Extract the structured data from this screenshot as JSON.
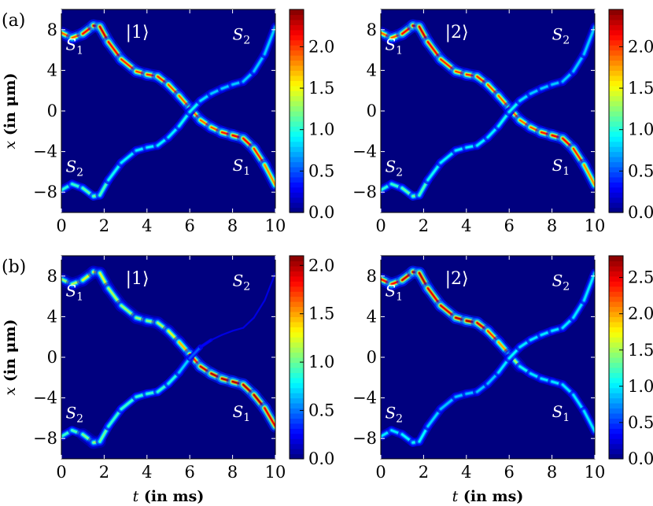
{
  "figure": {
    "xlabel": "t (in ms)",
    "ylabel": "x (in μm)",
    "background_color": "#00007f"
  },
  "colormap": "jet",
  "chart_data": [
    {
      "type": "heatmap",
      "row": "(a)",
      "state": "|1⟩",
      "xlim": [
        0,
        10
      ],
      "ylim": [
        -10,
        10
      ],
      "xticks": [
        "0",
        "2",
        "4",
        "6",
        "8",
        "10"
      ],
      "yticks": [
        "8",
        "4",
        "0",
        "−4",
        "−8"
      ],
      "colorbar": {
        "vmin": 0.0,
        "vmax": 2.45,
        "ticks": [
          "0.0",
          "0.5",
          "1.0",
          "1.5",
          "2.0"
        ]
      },
      "labels": [
        {
          "text": "S1",
          "t": 0.2,
          "x": 6.0
        },
        {
          "text": "S2",
          "t": 8.0,
          "x": 7.0
        },
        {
          "text": "S2",
          "t": 0.2,
          "x": -6.0
        },
        {
          "text": "S1",
          "t": 8.0,
          "x": -5.9
        }
      ],
      "series": [
        {
          "name": "S1",
          "t": [
            0,
            0.5,
            1.0,
            1.5,
            1.8,
            2.2,
            2.8,
            3.5,
            4.0,
            4.5,
            5.0,
            5.5,
            6.0,
            6.5,
            7.0,
            7.5,
            8.0,
            8.5,
            9.0,
            9.5,
            10.0
          ],
          "x": [
            7.7,
            7.2,
            7.6,
            8.4,
            8.3,
            6.8,
            5.1,
            3.9,
            3.6,
            3.4,
            2.6,
            1.5,
            0.3,
            -0.9,
            -1.6,
            -2.1,
            -2.4,
            -2.7,
            -3.7,
            -5.3,
            -7.3
          ],
          "peak": [
            1.9,
            1.9,
            2.0,
            2.3,
            2.3,
            2.2,
            2.1,
            2.0,
            2.0,
            2.1,
            2.0,
            1.9,
            1.9,
            1.9,
            1.9,
            2.0,
            2.2,
            2.2,
            2.1,
            2.0,
            1.6
          ]
        },
        {
          "name": "S2",
          "t": [
            0,
            0.5,
            1.0,
            1.5,
            1.8,
            2.2,
            2.8,
            3.5,
            4.0,
            4.5,
            5.0,
            5.5,
            6.0,
            6.5,
            7.0,
            7.5,
            8.0,
            8.5,
            9.0,
            9.5,
            10.0
          ],
          "x": [
            -7.8,
            -7.2,
            -7.6,
            -8.4,
            -8.3,
            -6.8,
            -5.1,
            -3.9,
            -3.6,
            -3.4,
            -2.6,
            -1.5,
            -0.1,
            1.0,
            1.7,
            2.2,
            2.6,
            2.9,
            3.9,
            5.6,
            8.3
          ],
          "peak": [
            1.0,
            1.0,
            1.1,
            1.2,
            1.2,
            1.0,
            0.9,
            0.9,
            0.9,
            0.9,
            0.9,
            0.9,
            1.0,
            0.9,
            0.8,
            0.8,
            0.8,
            0.8,
            0.8,
            0.8,
            0.8
          ]
        }
      ]
    },
    {
      "type": "heatmap",
      "row": "(a)",
      "state": "|2⟩",
      "xlim": [
        0,
        10
      ],
      "ylim": [
        -10,
        10
      ],
      "xticks": [
        "0",
        "2",
        "4",
        "6",
        "8",
        "10"
      ],
      "yticks": [
        "8",
        "4",
        "0",
        "−4",
        "−8"
      ],
      "colorbar": {
        "vmin": 0.0,
        "vmax": 2.45,
        "ticks": [
          "0.0",
          "0.5",
          "1.0",
          "1.5",
          "2.0"
        ]
      },
      "labels": [
        {
          "text": "S1",
          "t": 0.2,
          "x": 6.0
        },
        {
          "text": "S2",
          "t": 8.0,
          "x": 7.0
        },
        {
          "text": "S2",
          "t": 0.2,
          "x": -6.0
        },
        {
          "text": "S1",
          "t": 8.0,
          "x": -5.9
        }
      ],
      "series": [
        {
          "name": "S1",
          "t": [
            0,
            0.5,
            1.0,
            1.5,
            1.8,
            2.2,
            2.8,
            3.5,
            4.0,
            4.5,
            5.0,
            5.5,
            6.0,
            6.5,
            7.0,
            7.5,
            8.0,
            8.5,
            9.0,
            9.5,
            10.0
          ],
          "x": [
            7.7,
            7.2,
            7.6,
            8.4,
            8.3,
            6.8,
            5.1,
            3.9,
            3.6,
            3.4,
            2.6,
            1.5,
            0.3,
            -0.9,
            -1.6,
            -2.1,
            -2.4,
            -2.7,
            -3.7,
            -5.3,
            -7.3
          ],
          "peak": [
            1.9,
            1.9,
            2.0,
            2.3,
            2.3,
            2.2,
            2.1,
            2.0,
            2.0,
            2.1,
            2.0,
            1.9,
            1.9,
            1.9,
            1.9,
            2.0,
            2.2,
            2.2,
            2.1,
            2.0,
            1.6
          ]
        },
        {
          "name": "S2",
          "t": [
            0,
            0.5,
            1.0,
            1.5,
            1.8,
            2.2,
            2.8,
            3.5,
            4.0,
            4.5,
            5.0,
            5.5,
            6.0,
            6.5,
            7.0,
            7.5,
            8.0,
            8.5,
            9.0,
            9.5,
            10.0
          ],
          "x": [
            -7.8,
            -7.2,
            -7.6,
            -8.4,
            -8.3,
            -6.8,
            -5.1,
            -3.9,
            -3.6,
            -3.4,
            -2.6,
            -1.5,
            -0.1,
            1.0,
            1.7,
            2.2,
            2.6,
            2.9,
            3.9,
            5.6,
            8.3
          ],
          "peak": [
            1.0,
            1.0,
            1.1,
            1.2,
            1.2,
            1.0,
            0.9,
            0.9,
            0.9,
            0.9,
            0.9,
            0.9,
            1.0,
            0.9,
            0.8,
            0.8,
            0.8,
            0.8,
            0.8,
            0.8,
            0.8
          ]
        }
      ]
    },
    {
      "type": "heatmap",
      "row": "(b)",
      "state": "|1⟩",
      "xlim": [
        0,
        10
      ],
      "ylim": [
        -10,
        10
      ],
      "xticks": [
        "0",
        "2",
        "4",
        "6",
        "8",
        "10"
      ],
      "yticks": [
        "8",
        "4",
        "0",
        "−4",
        "−8"
      ],
      "colorbar": {
        "vmin": 0.0,
        "vmax": 2.1,
        "ticks": [
          "0.0",
          "0.5",
          "1.0",
          "1.5",
          "2.0"
        ]
      },
      "labels": [
        {
          "text": "S1",
          "t": 0.2,
          "x": 6.0
        },
        {
          "text": "S2",
          "t": 8.0,
          "x": 7.0
        },
        {
          "text": "S2",
          "t": 0.2,
          "x": -6.0
        },
        {
          "text": "S1",
          "t": 8.0,
          "x": -5.9
        }
      ],
      "series": [
        {
          "name": "S1",
          "t": [
            0,
            0.5,
            1.0,
            1.5,
            1.8,
            2.2,
            2.8,
            3.5,
            4.0,
            4.5,
            5.0,
            5.5,
            6.0,
            6.5,
            7.0,
            7.5,
            8.0,
            8.5,
            9.0,
            9.5,
            10.0
          ],
          "x": [
            7.7,
            7.2,
            7.6,
            8.4,
            8.3,
            6.8,
            5.1,
            3.9,
            3.6,
            3.4,
            2.6,
            1.5,
            0.3,
            -0.9,
            -1.6,
            -2.1,
            -2.4,
            -2.7,
            -3.7,
            -5.0,
            -6.8
          ],
          "peak": [
            1.1,
            1.1,
            1.2,
            1.3,
            1.3,
            1.2,
            1.1,
            1.1,
            1.1,
            1.1,
            1.2,
            1.3,
            1.6,
            1.9,
            2.0,
            2.0,
            2.0,
            2.0,
            2.0,
            2.0,
            1.8
          ]
        },
        {
          "name": "S2",
          "t": [
            0,
            0.5,
            1.0,
            1.5,
            1.8,
            2.2,
            2.8,
            3.5,
            4.0,
            4.5,
            5.0,
            5.5,
            6.0,
            6.5,
            7.0,
            7.5,
            8.0,
            8.5,
            9.0,
            9.5,
            10.0
          ],
          "x": [
            -7.8,
            -7.2,
            -7.6,
            -8.4,
            -8.3,
            -6.8,
            -5.1,
            -3.9,
            -3.6,
            -3.4,
            -2.6,
            -1.5,
            -0.1,
            1.0,
            1.7,
            2.2,
            2.6,
            2.9,
            3.9,
            5.6,
            8.3
          ],
          "peak": [
            0.9,
            0.9,
            1.0,
            1.1,
            1.1,
            0.9,
            0.9,
            0.9,
            0.9,
            0.9,
            0.9,
            0.8,
            0.6,
            0.3,
            0.2,
            0.2,
            0.2,
            0.2,
            0.2,
            0.2,
            0.2
          ]
        }
      ]
    },
    {
      "type": "heatmap",
      "row": "(b)",
      "state": "|2⟩",
      "xlim": [
        0,
        10
      ],
      "ylim": [
        -10,
        10
      ],
      "xticks": [
        "0",
        "2",
        "4",
        "6",
        "8",
        "10"
      ],
      "yticks": [
        "8",
        "4",
        "0",
        "−4",
        "−8"
      ],
      "colorbar": {
        "vmin": 0.0,
        "vmax": 2.8,
        "ticks": [
          "0.0",
          "0.5",
          "1.0",
          "1.5",
          "2.0",
          "2.5"
        ]
      },
      "labels": [
        {
          "text": "S1",
          "t": 0.2,
          "x": 6.0
        },
        {
          "text": "S2",
          "t": 8.0,
          "x": 7.0
        },
        {
          "text": "S2",
          "t": 0.2,
          "x": -6.0
        },
        {
          "text": "S1",
          "t": 8.0,
          "x": -5.9
        }
      ],
      "series": [
        {
          "name": "S1",
          "t": [
            0,
            0.5,
            1.0,
            1.5,
            1.8,
            2.2,
            2.8,
            3.5,
            4.0,
            4.5,
            5.0,
            5.5,
            6.0,
            6.5,
            7.0,
            7.5,
            8.0,
            8.5,
            9.0,
            9.5,
            10.0
          ],
          "x": [
            7.7,
            7.2,
            7.6,
            8.4,
            8.3,
            6.8,
            5.1,
            3.9,
            3.6,
            3.4,
            2.6,
            1.5,
            0.3,
            -0.9,
            -1.6,
            -2.1,
            -2.4,
            -2.7,
            -3.7,
            -5.3,
            -7.3
          ],
          "peak": [
            2.4,
            2.4,
            2.5,
            2.7,
            2.7,
            2.6,
            2.5,
            2.6,
            2.7,
            2.7,
            2.4,
            2.2,
            1.8,
            1.2,
            1.0,
            1.0,
            1.0,
            1.0,
            1.0,
            1.0,
            1.0
          ]
        },
        {
          "name": "S2",
          "t": [
            0,
            0.5,
            1.0,
            1.5,
            1.8,
            2.2,
            2.8,
            3.5,
            4.0,
            4.5,
            5.0,
            5.5,
            6.0,
            6.5,
            7.0,
            7.5,
            8.0,
            8.5,
            9.0,
            9.5,
            10.0
          ],
          "x": [
            -7.8,
            -7.2,
            -7.6,
            -8.4,
            -8.3,
            -6.8,
            -5.1,
            -3.9,
            -3.6,
            -3.4,
            -2.6,
            -1.5,
            -0.1,
            1.0,
            1.7,
            2.2,
            2.6,
            2.9,
            3.9,
            5.6,
            8.3
          ],
          "peak": [
            1.0,
            1.0,
            1.0,
            1.1,
            1.1,
            1.0,
            0.9,
            0.9,
            0.9,
            0.9,
            0.9,
            0.9,
            1.1,
            1.0,
            1.0,
            1.0,
            1.0,
            1.0,
            1.0,
            1.0,
            1.0
          ]
        }
      ]
    }
  ]
}
